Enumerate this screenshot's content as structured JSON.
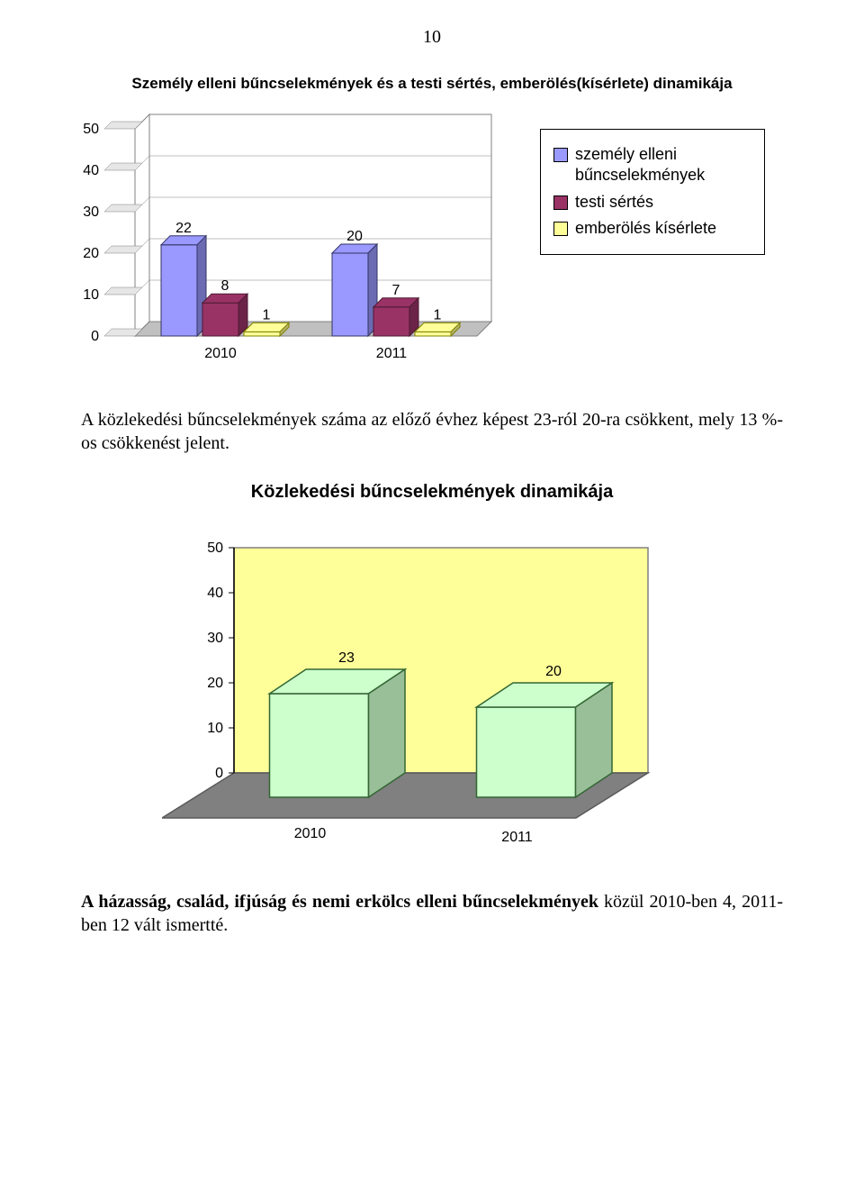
{
  "page_number": "10",
  "chart1": {
    "title": "Személy elleni bűncselekmények és a testi sértés, emberölés(kísérlete) dinamikája",
    "type": "bar-3d",
    "categories": [
      "2010",
      "2011"
    ],
    "series": [
      {
        "name": "személy elleni bűncselekmények",
        "color": "#9999ff",
        "edge": "#333366",
        "values": [
          22,
          20
        ]
      },
      {
        "name": "testi sértés",
        "color": "#993366",
        "edge": "#4d1a33",
        "values": [
          8,
          7
        ]
      },
      {
        "name": "emberölés kísérlete",
        "color": "#ffff99",
        "edge": "#808000",
        "values": [
          1,
          1
        ]
      }
    ],
    "y_ticks": [
      0,
      10,
      20,
      30,
      40,
      50
    ],
    "ylim": [
      0,
      50
    ],
    "label_fontsize": 16,
    "background": "#ffffff",
    "wall_color": "#ffffff",
    "wall_border": "#808080",
    "floor_color": "#c0c0c0"
  },
  "paragraph1": "A közlekedési bűncselekmények száma az előző évhez képest 23-ról 20-ra csökkent, mely 13 %-os csökkenést jelent.",
  "chart2": {
    "title": "Közlekedési bűncselekmények dinamikája",
    "type": "bar-3d-single",
    "categories": [
      "2010",
      "2011"
    ],
    "values": [
      23,
      20
    ],
    "bar_color": "#ccffcc",
    "bar_edge": "#336633",
    "y_ticks": [
      0,
      10,
      20,
      30,
      40,
      50
    ],
    "ylim": [
      0,
      50
    ],
    "wall_color": "#ffff99",
    "wall_border": "#808080",
    "floor_color": "#808080",
    "label_fontsize": 16
  },
  "paragraph2_prefix": "A házasság, család, ifjúság és nemi erkölcs elleni bűncselekmények",
  "paragraph2_suffix": " közül 2010-ben 4, 2011-ben 12 vált ismertté."
}
